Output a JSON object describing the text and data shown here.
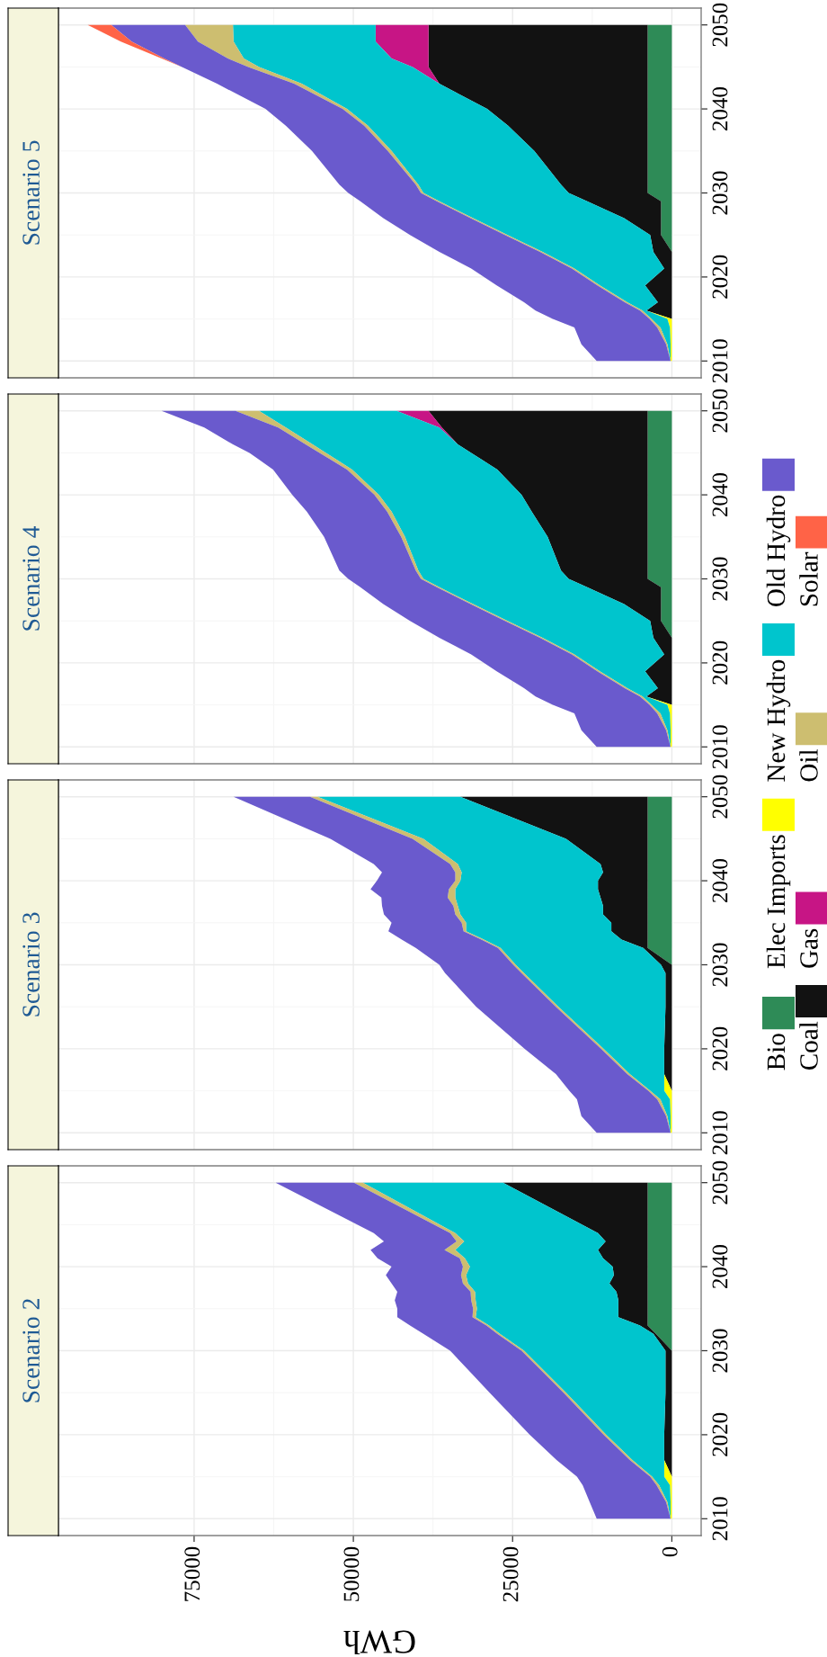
{
  "chart_data": [
    {
      "type": "area",
      "title": "Scenario 2",
      "xlabel": "GWh",
      "stacked": true,
      "orientation": "horizontal",
      "grid": true,
      "legend": "right",
      "xlim": [
        96300,
        -4600
      ],
      "xticks": [
        0,
        25000,
        50000,
        75000
      ],
      "ylim": [
        2008,
        2052
      ],
      "yticks": [
        2010,
        2020,
        2030,
        2040,
        2050
      ],
      "x": [
        2010,
        2012,
        2014,
        2015,
        2017,
        2020,
        2025,
        2030,
        2032,
        2033,
        2034,
        2035,
        2036,
        2037,
        2038,
        2039,
        2040,
        2041,
        2042,
        2043,
        2044,
        2050
      ],
      "series": [
        {
          "name": "Bio",
          "color": "#2e8b57",
          "values": [
            null,
            null,
            null,
            null,
            null,
            null,
            null,
            0,
            2500,
            3800,
            3800,
            3800,
            3800,
            3800,
            3800,
            3800,
            3800,
            3800,
            3800,
            3800,
            3800,
            3800
          ]
        },
        {
          "name": "Coal",
          "color": "#121212",
          "values": [
            null,
            null,
            null,
            0,
            1200,
            1200,
            1000,
            1000,
            400,
            1200,
            4600,
            4600,
            4600,
            4900,
            6000,
            5300,
            5500,
            7000,
            7800,
            6600,
            7800,
            22700
          ]
        },
        {
          "name": "Elec Imports",
          "color": "#ffff00",
          "values": [
            200,
            200,
            300,
            1200,
            0,
            null,
            null,
            null,
            null,
            null,
            null,
            null,
            null,
            null,
            null,
            null,
            null,
            null,
            null,
            null,
            null,
            null
          ]
        },
        {
          "name": "New Hydro",
          "color": "#00c5cd",
          "values": [
            0,
            500,
            1700,
            1900,
            5000,
            9100,
            15600,
            22200,
            24100,
            23700,
            22400,
            22200,
            22400,
            22200,
            22200,
            23200,
            22400,
            21700,
            22400,
            22200,
            22400,
            22000
          ]
        },
        {
          "name": "Oil",
          "color": "#cdbe70",
          "values": [
            0,
            200,
            400,
            300,
            400,
            400,
            400,
            400,
            400,
            400,
            500,
            600,
            700,
            700,
            800,
            800,
            1100,
            800,
            1700,
            1200,
            800,
            1400
          ]
        },
        {
          "name": "Old Hydro",
          "color": "#6a5acd",
          "values": [
            11600,
            12000,
            11600,
            11500,
            11500,
            11600,
            11600,
            11200,
            11600,
            12000,
            11800,
            11900,
            12000,
            11500,
            11200,
            11800,
            11200,
            12900,
            11600,
            11400,
            12000,
            12300
          ]
        }
      ]
    },
    {
      "type": "area",
      "title": "Scenario 3",
      "stacked": true,
      "orientation": "horizontal",
      "grid": true,
      "tick_labels": "y",
      "xlim": [
        96300,
        -4600
      ],
      "xticks": [
        0,
        25000,
        50000,
        75000
      ],
      "ylim": [
        2008,
        2052
      ],
      "yticks": [
        2010,
        2020,
        2030,
        2040,
        2050
      ],
      "x": [
        2010,
        2012,
        2014,
        2015,
        2017,
        2020,
        2025,
        2029,
        2030,
        2032,
        2033,
        2034,
        2035,
        2036,
        2037,
        2038,
        2039,
        2040,
        2041,
        2042,
        2045,
        2050
      ],
      "series": [
        {
          "name": "Bio",
          "color": "#2e8b57",
          "values": [
            null,
            null,
            null,
            null,
            null,
            null,
            null,
            null,
            0,
            3800,
            3800,
            3800,
            3800,
            3800,
            3800,
            3800,
            3800,
            3800,
            3800,
            3800,
            3800,
            3800
          ]
        },
        {
          "name": "Coal",
          "color": "#121212",
          "values": [
            null,
            null,
            null,
            0,
            1200,
            1200,
            1000,
            1000,
            1700,
            700,
            4100,
            5700,
            5700,
            7000,
            7000,
            7400,
            7800,
            7800,
            7000,
            7400,
            12800,
            29400
          ]
        },
        {
          "name": "Elec Imports",
          "color": "#ffff00",
          "values": [
            200,
            200,
            300,
            1200,
            0,
            null,
            null,
            null,
            null,
            null,
            null,
            null,
            null,
            null,
            null,
            null,
            null,
            null,
            null,
            null,
            null,
            null
          ]
        },
        {
          "name": "New Hydro",
          "color": "#00c5cd",
          "values": [
            0,
            500,
            1500,
            2200,
            5400,
            9500,
            16800,
            22200,
            22800,
            22400,
            21600,
            22800,
            22800,
            22400,
            22800,
            22800,
            22400,
            21600,
            22200,
            22400,
            22400,
            22400
          ]
        },
        {
          "name": "Oil",
          "color": "#cdbe70",
          "values": [
            0,
            200,
            500,
            300,
            400,
            400,
            400,
            400,
            400,
            400,
            400,
            400,
            700,
            800,
            700,
            1200,
            1000,
            800,
            1000,
            1200,
            1700,
            1200
          ]
        },
        {
          "name": "Old Hydro",
          "color": "#6a5acd",
          "values": [
            11600,
            13300,
            12600,
            12400,
            11200,
            12000,
            12500,
            12000,
            11600,
            12900,
            12500,
            11800,
            11000,
            11200,
            11200,
            10400,
            12300,
            12300,
            11500,
            12000,
            12900,
            12000
          ]
        }
      ]
    },
    {
      "type": "area",
      "title": "Scenario 4",
      "stacked": true,
      "orientation": "horizontal",
      "grid": true,
      "tick_labels": "y",
      "xlim": [
        96300,
        -4600
      ],
      "xticks": [
        0,
        25000,
        50000,
        75000
      ],
      "ylim": [
        2008,
        2052
      ],
      "yticks": [
        2010,
        2020,
        2030,
        2040,
        2050
      ],
      "x": [
        2010,
        2012,
        2014,
        2015,
        2016,
        2017,
        2019,
        2021,
        2023,
        2025,
        2027,
        2029,
        2030,
        2031,
        2035,
        2038,
        2040,
        2043,
        2045,
        2046,
        2048,
        2050
      ],
      "series": [
        {
          "name": "Bio",
          "color": "#2e8b57",
          "values": [
            null,
            null,
            null,
            null,
            null,
            null,
            null,
            null,
            0,
            1700,
            1700,
            1700,
            3800,
            3800,
            3800,
            3800,
            3800,
            3800,
            3800,
            3800,
            3800,
            3800
          ]
        },
        {
          "name": "Coal",
          "color": "#121212",
          "values": [
            null,
            null,
            null,
            0,
            4000,
            2200,
            4200,
            1200,
            2900,
            1700,
            5800,
            11600,
            12400,
            13600,
            15700,
            18200,
            19800,
            23600,
            27700,
            29800,
            32300,
            34400
          ]
        },
        {
          "name": "Elec Imports",
          "color": "#ffff00",
          "values": [
            200,
            200,
            300,
            700,
            0,
            null,
            null,
            null,
            null,
            null,
            null,
            null,
            null,
            null,
            null,
            null,
            null,
            null,
            null,
            null,
            null,
            null
          ]
        },
        {
          "name": "Gas",
          "color": "#c71585",
          "values": [
            null,
            null,
            null,
            null,
            null,
            null,
            null,
            null,
            null,
            null,
            null,
            null,
            null,
            null,
            null,
            null,
            null,
            null,
            null,
            0,
            400,
            5000
          ]
        },
        {
          "name": "New Hydro",
          "color": "#00c5cd",
          "values": [
            0,
            500,
            1500,
            2500,
            600,
            4800,
            7100,
            14100,
            17400,
            22400,
            23700,
            23200,
            22800,
            22400,
            22400,
            22000,
            22400,
            22800,
            22800,
            22800,
            24100,
            21600
          ]
        },
        {
          "name": "Oil",
          "color": "#cdbe70",
          "values": [
            0,
            200,
            500,
            300,
            400,
            400,
            400,
            400,
            400,
            400,
            400,
            400,
            400,
            400,
            600,
            700,
            700,
            800,
            1000,
            1100,
            1200,
            3700
          ]
        },
        {
          "name": "Old Hydro",
          "color": "#6a5acd",
          "values": [
            11600,
            13300,
            13000,
            15200,
            16400,
            15800,
            15800,
            15800,
            15800,
            14900,
            13700,
            12000,
            11400,
            12000,
            12100,
            12600,
            12900,
            11600,
            11000,
            11400,
            11600,
            11600
          ]
        }
      ]
    },
    {
      "type": "area",
      "title": "Scenario 5",
      "stacked": true,
      "orientation": "horizontal",
      "grid": true,
      "tick_labels": "y",
      "xlim": [
        96300,
        -4600
      ],
      "xticks": [
        0,
        25000,
        50000,
        75000
      ],
      "ylim": [
        2008,
        2052
      ],
      "yticks": [
        2010,
        2020,
        2030,
        2040,
        2050
      ],
      "x": [
        2010,
        2012,
        2014,
        2015,
        2016,
        2017,
        2019,
        2021,
        2023,
        2025,
        2027,
        2029,
        2030,
        2031,
        2035,
        2038,
        2040,
        2043,
        2045,
        2046,
        2048,
        2050
      ],
      "series": [
        {
          "name": "Bio",
          "color": "#2e8b57",
          "values": [
            null,
            null,
            null,
            null,
            null,
            null,
            null,
            null,
            0,
            1700,
            1700,
            1700,
            3800,
            3800,
            3800,
            3800,
            3800,
            3800,
            3800,
            3800,
            3800,
            3800
          ]
        },
        {
          "name": "Coal",
          "color": "#121212",
          "values": [
            null,
            null,
            null,
            0,
            4000,
            2200,
            4200,
            1200,
            2900,
            1700,
            5800,
            11600,
            12400,
            13600,
            17800,
            21900,
            25200,
            32700,
            34400,
            34400,
            34400,
            34400
          ]
        },
        {
          "name": "Elec Imports",
          "color": "#ffff00",
          "values": [
            200,
            200,
            300,
            700,
            0,
            null,
            null,
            null,
            null,
            null,
            null,
            null,
            null,
            null,
            null,
            null,
            null,
            null,
            null,
            null,
            null,
            null
          ]
        },
        {
          "name": "Gas",
          "color": "#c71585",
          "values": [
            null,
            null,
            null,
            null,
            null,
            null,
            null,
            null,
            null,
            null,
            null,
            null,
            null,
            null,
            null,
            null,
            null,
            0,
            2500,
            5800,
            8300,
            8300
          ]
        },
        {
          "name": "New Hydro",
          "color": "#00c5cd",
          "values": [
            0,
            500,
            1500,
            2500,
            600,
            4800,
            7100,
            14100,
            17400,
            22400,
            23700,
            23200,
            22800,
            22400,
            22400,
            22000,
            22000,
            21600,
            24100,
            23200,
            22300,
            22400
          ]
        },
        {
          "name": "Oil",
          "color": "#cdbe70",
          "values": [
            0,
            200,
            500,
            300,
            400,
            400,
            400,
            400,
            400,
            400,
            400,
            400,
            400,
            400,
            600,
            600,
            700,
            1200,
            1700,
            2500,
            5600,
            7500
          ]
        },
        {
          "name": "Old Hydro",
          "color": "#6a5acd",
          "values": [
            11600,
            13300,
            13000,
            15200,
            16400,
            15800,
            15800,
            15800,
            15800,
            14900,
            13700,
            12000,
            11400,
            12000,
            11900,
            12300,
            12100,
            12100,
            10400,
            10000,
            10400,
            11600
          ]
        },
        {
          "name": "Solar",
          "color": "#ff6347",
          "values": [
            null,
            null,
            null,
            null,
            null,
            null,
            null,
            null,
            null,
            null,
            null,
            null,
            null,
            null,
            null,
            null,
            null,
            null,
            0,
            400,
            1700,
            3700
          ]
        }
      ]
    }
  ]
}
